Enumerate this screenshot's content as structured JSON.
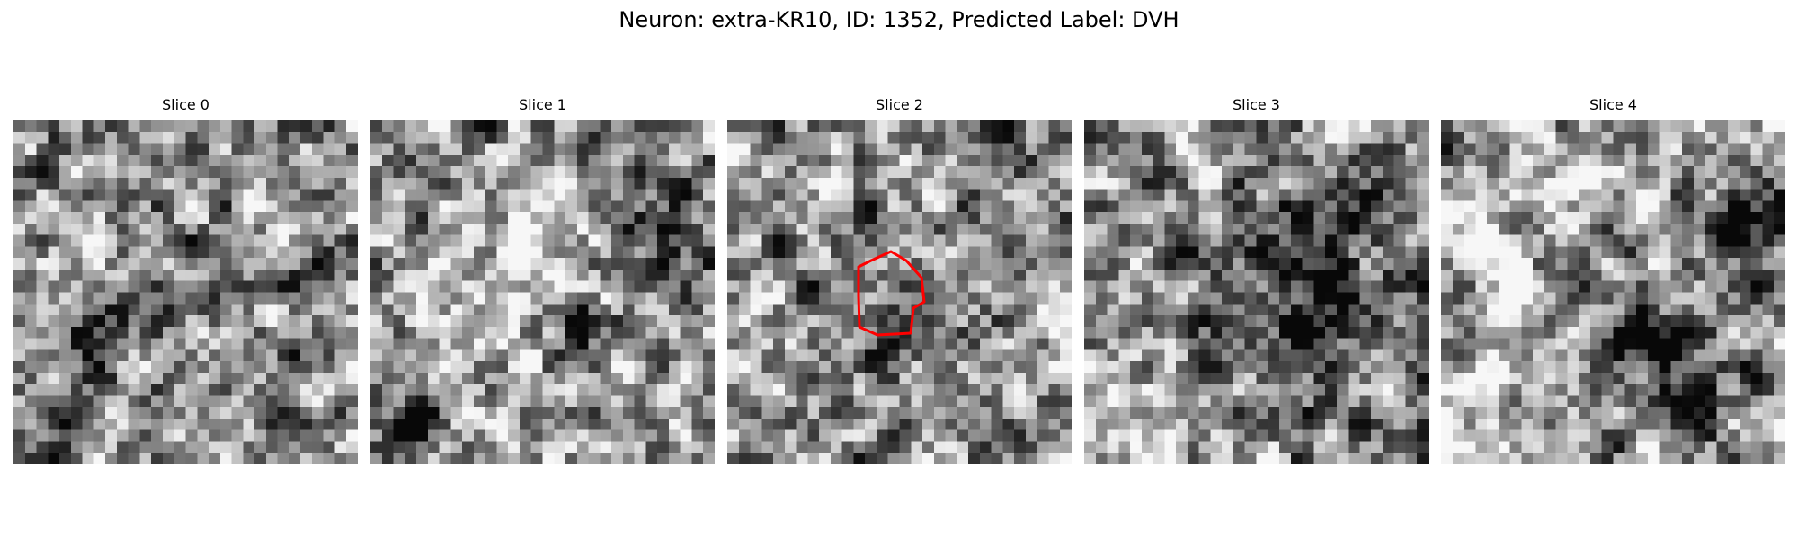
{
  "figure": {
    "title": "Neuron: extra-KR10, ID: 1352, Predicted Label: DVH"
  },
  "panels": [
    {
      "title": "Slice 0",
      "seed": 11,
      "blobs": [
        [
          0.18,
          0.62,
          0.08,
          -0.45
        ],
        [
          0.12,
          0.88,
          0.06,
          -0.3
        ],
        [
          0.55,
          0.55,
          0.2,
          -0.15
        ]
      ]
    },
    {
      "title": "Slice 1",
      "seed": 27,
      "blobs": [
        [
          0.12,
          0.85,
          0.05,
          -0.7
        ],
        [
          0.58,
          0.6,
          0.05,
          -0.6
        ],
        [
          0.85,
          0.28,
          0.09,
          -0.35
        ],
        [
          0.35,
          0.45,
          0.18,
          0.2
        ]
      ]
    },
    {
      "title": "Slice 2",
      "seed": 43,
      "blobs": [
        [
          0.5,
          0.52,
          0.09,
          -0.35
        ],
        [
          0.88,
          0.22,
          0.12,
          -0.35
        ],
        [
          0.88,
          0.22,
          0.07,
          0.45
        ],
        [
          0.5,
          0.52,
          0.05,
          0.1
        ]
      ]
    },
    {
      "title": "Slice 3",
      "seed": 59,
      "blobs": [
        [
          0.65,
          0.35,
          0.14,
          -0.35
        ],
        [
          0.65,
          0.6,
          0.14,
          -0.3
        ],
        [
          0.15,
          0.85,
          0.1,
          0.25
        ]
      ]
    },
    {
      "title": "Slice 4",
      "seed": 71,
      "blobs": [
        [
          0.6,
          0.62,
          0.1,
          -0.6
        ],
        [
          0.72,
          0.8,
          0.06,
          -0.5
        ],
        [
          0.88,
          0.3,
          0.08,
          -0.45
        ],
        [
          0.15,
          0.2,
          0.15,
          0.25
        ],
        [
          0.1,
          0.85,
          0.12,
          0.3
        ]
      ]
    }
  ],
  "roi": {
    "slice": "Slice 2",
    "color": "#ff0000"
  }
}
